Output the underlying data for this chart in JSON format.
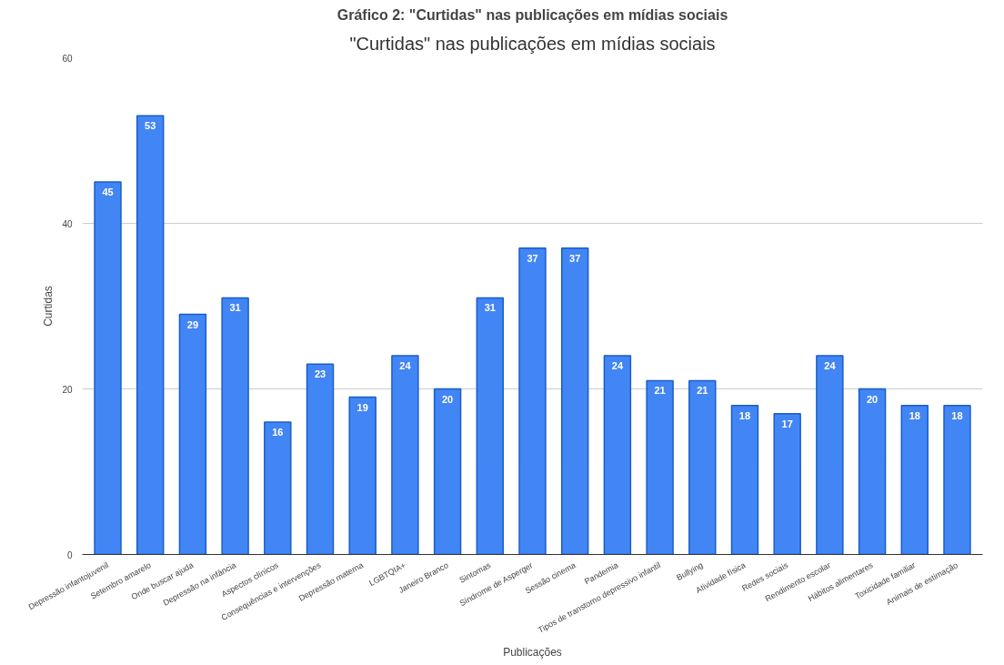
{
  "chart_data": {
    "type": "bar",
    "title": "\"Curtidas\" nas publicações em mídias sociais",
    "annotations": [
      "Gráfico 2: \"Curtidas\" nas publicações em mídias sociais"
    ],
    "xlabel": "Publicações",
    "ylabel": "Curtidas",
    "categories": [
      "Depressão infantojuvenil",
      "Setembro amarelo",
      "Onde buscar ajuda",
      "Depressão na infância",
      "Aspectos clínicos",
      "Consequências e intervenções",
      "Depressão materna",
      "LGBTQIA+",
      "Janeiro Branco",
      "Sintomas",
      "Síndrome de Asperger",
      "Sessão cinema",
      "Pandemia",
      "Tipos de transtorno depressivo infantil",
      "Bullying",
      "Atividade física",
      "Redes sociais",
      "Rendimento escolar",
      "Hábitos alimentares",
      "Toxicidade familiar",
      "Animais de estimação"
    ],
    "values": [
      45,
      53,
      29,
      31,
      16,
      23,
      19,
      24,
      20,
      31,
      37,
      37,
      24,
      21,
      21,
      18,
      17,
      24,
      20,
      18,
      18
    ],
    "color": "#4285f4",
    "ylim": [
      0,
      60
    ],
    "yticks": [
      0,
      20,
      40,
      60
    ],
    "grid": "y",
    "data_labels": true
  }
}
